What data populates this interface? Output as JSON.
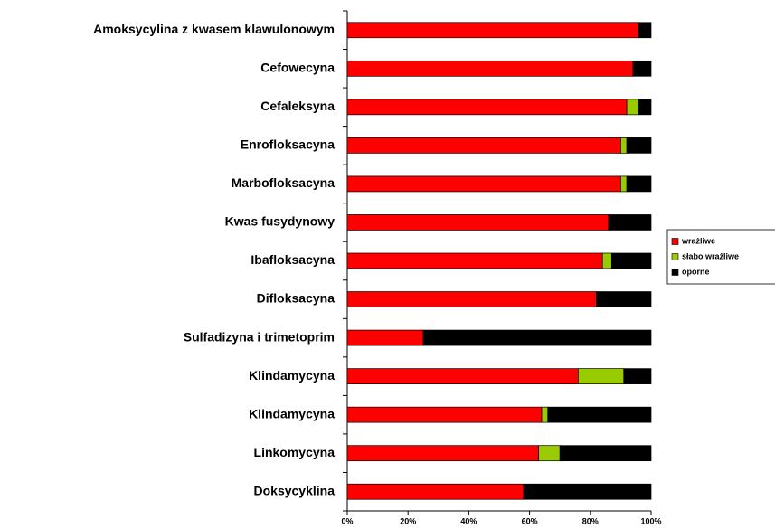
{
  "chart_data": {
    "type": "stacked_barh",
    "categories": [
      "Amoksycylina z kwasem klawulonowym",
      "Cefowecyna",
      "Cefaleksyna",
      "Enrofloksacyna",
      "Marbofloksacyna",
      "Kwas fusydynowy",
      "Ibafloksacyna",
      "Difloksacyna",
      "Sulfadizyna i trimetoprim",
      "Klindamycyna",
      "Klindamycyna",
      "Linkomycyna",
      "Doksycyklina"
    ],
    "series": [
      {
        "name": "wrażliwe",
        "color": "#ff0000",
        "values": [
          96,
          94,
          92,
          90,
          90,
          86,
          84,
          82,
          25,
          76,
          64,
          63,
          58
        ]
      },
      {
        "name": "słabo wrażliwe",
        "color": "#99cc00",
        "values": [
          0,
          0,
          4,
          2,
          2,
          0,
          3,
          0,
          0,
          15,
          2,
          7,
          0
        ]
      },
      {
        "name": "oporne",
        "color": "#000000",
        "values": [
          4,
          6,
          4,
          8,
          8,
          14,
          13,
          18,
          75,
          9,
          34,
          30,
          42
        ]
      }
    ],
    "xlim": [
      0,
      100
    ],
    "xticks": [
      {
        "value": 0,
        "label": "0%"
      },
      {
        "value": 20,
        "label": "20%"
      },
      {
        "value": 40,
        "label": "40%"
      },
      {
        "value": 60,
        "label": "60%"
      },
      {
        "value": 80,
        "label": "80%"
      },
      {
        "value": 100,
        "label": "100%"
      }
    ],
    "legend": "right"
  }
}
